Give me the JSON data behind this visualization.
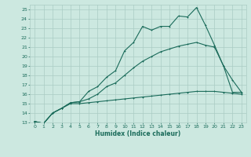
{
  "xlabel": "Humidex (Indice chaleur)",
  "bg_color": "#cce8e0",
  "grid_color": "#aaccc4",
  "line_color": "#1a6b5a",
  "xlim": [
    -0.5,
    23.5
  ],
  "ylim": [
    13,
    25.5
  ],
  "xticks": [
    0,
    1,
    2,
    3,
    4,
    5,
    6,
    7,
    8,
    9,
    10,
    11,
    12,
    13,
    14,
    15,
    16,
    17,
    18,
    19,
    20,
    21,
    22,
    23
  ],
  "yticks": [
    13,
    14,
    15,
    16,
    17,
    18,
    19,
    20,
    21,
    22,
    23,
    24,
    25
  ],
  "series1_x": [
    0,
    1,
    2,
    3,
    4,
    5,
    6,
    7,
    8,
    9,
    10,
    11,
    12,
    13,
    14,
    15,
    16,
    17,
    18,
    19,
    20,
    21,
    22,
    23
  ],
  "series1_y": [
    13.1,
    12.9,
    14.0,
    14.5,
    15.1,
    15.2,
    16.3,
    16.8,
    17.8,
    18.5,
    20.6,
    21.5,
    23.2,
    22.8,
    23.2,
    23.2,
    24.3,
    24.2,
    25.2,
    23.3,
    21.2,
    19.0,
    16.2,
    16.2
  ],
  "series2_x": [
    0,
    1,
    2,
    3,
    4,
    5,
    6,
    7,
    8,
    9,
    10,
    11,
    12,
    13,
    14,
    15,
    16,
    17,
    18,
    19,
    20,
    21,
    22,
    23
  ],
  "series2_y": [
    13.1,
    12.9,
    14.0,
    14.5,
    15.1,
    15.2,
    15.5,
    16.0,
    16.8,
    17.2,
    18.0,
    18.8,
    19.5,
    20.0,
    20.5,
    20.8,
    21.1,
    21.3,
    21.5,
    21.2,
    21.0,
    19.0,
    17.5,
    16.2
  ],
  "series3_x": [
    0,
    1,
    2,
    3,
    4,
    5,
    6,
    7,
    8,
    9,
    10,
    11,
    12,
    13,
    14,
    15,
    16,
    17,
    18,
    19,
    20,
    21,
    22,
    23
  ],
  "series3_y": [
    13.1,
    12.9,
    14.0,
    14.5,
    15.0,
    15.0,
    15.1,
    15.2,
    15.3,
    15.4,
    15.5,
    15.6,
    15.7,
    15.8,
    15.9,
    16.0,
    16.1,
    16.2,
    16.3,
    16.3,
    16.3,
    16.2,
    16.1,
    16.0
  ]
}
